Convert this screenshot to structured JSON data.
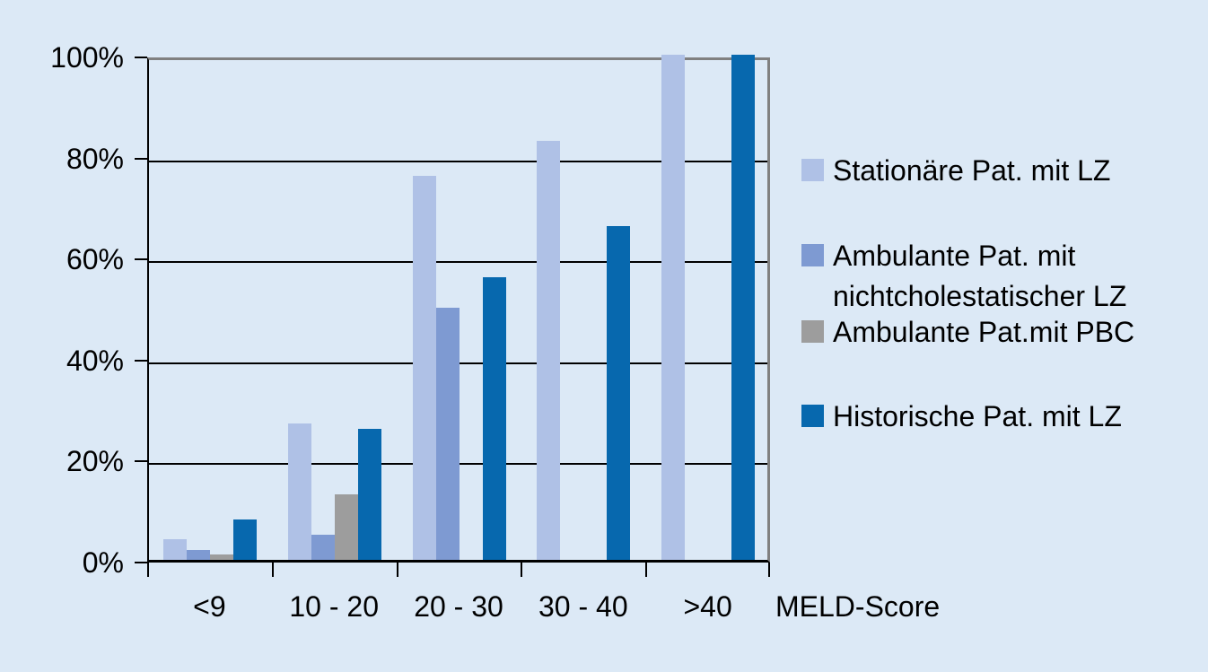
{
  "chart": {
    "background_color": "#dce9f6",
    "plot_border_color": "#808080",
    "gridline_color": "#000000",
    "text_color": "#000000",
    "y_ticks": [
      "100%",
      "80%",
      "60%",
      "40%",
      "20%",
      "0%"
    ],
    "axis_title": "MELD-Score",
    "legend": {
      "position": "right",
      "items": [
        {
          "label": "Stationäre Pat. mit LZ",
          "color": "#afc1e6"
        },
        {
          "label": "Ambulante Pat. mit nichtcholestatischer LZ",
          "color": "#7e9ad2"
        },
        {
          "label": "Ambulante Pat.mit PBC",
          "color": "#9d9d9d"
        },
        {
          "label": "Historische Pat. mit LZ",
          "color": "#0768ae"
        }
      ]
    }
  },
  "chart_data": {
    "type": "bar",
    "title": "",
    "xlabel": "MELD-Score",
    "ylabel": "",
    "ylim": [
      0,
      100
    ],
    "y_tick_values": [
      100,
      80,
      60,
      40,
      20,
      0
    ],
    "y_tick_format": "percent",
    "grid": true,
    "legend_position": "right",
    "categories": [
      "<9",
      "10 - 20",
      "20 - 30",
      "30 - 40",
      ">40"
    ],
    "series": [
      {
        "name": "Stationäre Pat. mit LZ",
        "color": "#afc1e6",
        "values": [
          4,
          27,
          76,
          83,
          100
        ]
      },
      {
        "name": "Ambulante Pat. mit nichtcholestatischer LZ",
        "color": "#7e9ad2",
        "values": [
          2,
          5,
          50,
          0,
          0
        ]
      },
      {
        "name": "Ambulante Pat.mit PBC",
        "color": "#9d9d9d",
        "values": [
          1,
          13,
          0,
          0,
          0
        ]
      },
      {
        "name": "Historische Pat. mit LZ",
        "color": "#0768ae",
        "values": [
          8,
          26,
          56,
          66,
          100
        ]
      }
    ]
  }
}
